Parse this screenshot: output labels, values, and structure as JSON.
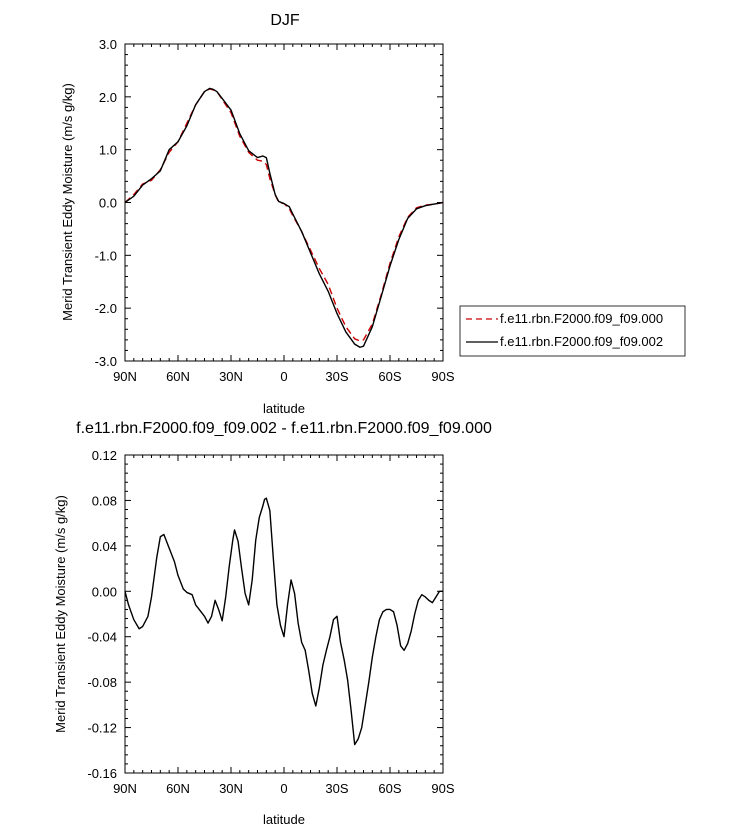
{
  "chart_data": [
    {
      "type": "line",
      "title": "DJF",
      "xlabel": "latitude",
      "ylabel": "Merid Transient Eddy Moisture (m/s g/kg)",
      "xlim": [
        -90,
        90
      ],
      "ylim": [
        -3.0,
        3.0
      ],
      "x_ticks": [
        -90,
        -60,
        -30,
        0,
        30,
        60,
        90
      ],
      "x_tick_labels": [
        "90N",
        "60N",
        "30N",
        "0",
        "30S",
        "60S",
        "90S"
      ],
      "y_ticks": [
        -3.0,
        -2.0,
        -1.0,
        0.0,
        1.0,
        2.0,
        3.0
      ],
      "y_tick_labels": [
        "-3.0",
        "-2.0",
        "-1.0",
        "0.0",
        "1.0",
        "2.0",
        "3.0"
      ],
      "grid": false,
      "legend_position": "right",
      "series": [
        {
          "name": "f.e11.rbn.F2000.f09_f09.000",
          "color": "#cc0000",
          "dash": "dashed",
          "x": [
            -90,
            -85,
            -80,
            -75,
            -70,
            -65,
            -60,
            -55,
            -50,
            -45,
            -42,
            -40,
            -38,
            -35,
            -30,
            -25,
            -20,
            -15,
            -12,
            -10,
            -8,
            -5,
            -3,
            0,
            3,
            5,
            10,
            15,
            20,
            25,
            30,
            35,
            40,
            43,
            45,
            50,
            55,
            60,
            65,
            70,
            75,
            80,
            85,
            90
          ],
          "y": [
            0.0,
            0.15,
            0.35,
            0.42,
            0.62,
            0.95,
            1.15,
            1.5,
            1.85,
            2.1,
            2.15,
            2.13,
            2.1,
            1.95,
            1.7,
            1.25,
            0.95,
            0.8,
            0.78,
            0.72,
            0.45,
            0.15,
            0.0,
            -0.02,
            -0.12,
            -0.25,
            -0.55,
            -0.9,
            -1.25,
            -1.55,
            -2.0,
            -2.35,
            -2.58,
            -2.62,
            -2.6,
            -2.3,
            -1.75,
            -1.15,
            -0.65,
            -0.28,
            -0.1,
            -0.05,
            -0.03,
            0.0
          ]
        },
        {
          "name": "f.e11.rbn.F2000.f09_f09.002",
          "color": "#000000",
          "dash": "solid",
          "x": [
            -90,
            -85,
            -80,
            -75,
            -70,
            -65,
            -60,
            -55,
            -50,
            -45,
            -42,
            -40,
            -38,
            -35,
            -30,
            -25,
            -20,
            -15,
            -12,
            -10,
            -8,
            -5,
            -3,
            0,
            3,
            5,
            10,
            15,
            20,
            25,
            30,
            35,
            40,
            43,
            45,
            50,
            55,
            60,
            65,
            70,
            75,
            80,
            85,
            90
          ],
          "y": [
            0.0,
            0.12,
            0.33,
            0.45,
            0.6,
            1.0,
            1.15,
            1.45,
            1.85,
            2.1,
            2.16,
            2.14,
            2.1,
            1.97,
            1.75,
            1.3,
            0.98,
            0.85,
            0.88,
            0.85,
            0.55,
            0.15,
            0.02,
            -0.02,
            -0.08,
            -0.22,
            -0.55,
            -0.95,
            -1.35,
            -1.68,
            -2.1,
            -2.45,
            -2.68,
            -2.74,
            -2.72,
            -2.35,
            -1.78,
            -1.2,
            -0.7,
            -0.3,
            -0.12,
            -0.06,
            -0.03,
            0.0
          ]
        }
      ]
    },
    {
      "type": "line",
      "title": "f.e11.rbn.F2000.f09_f09.002 - f.e11.rbn.F2000.f09_f09.000",
      "xlabel": "latitude",
      "ylabel": "Merid Transient Eddy Moisture (m/s g/kg)",
      "xlim": [
        -90,
        90
      ],
      "ylim": [
        -0.16,
        0.12
      ],
      "x_ticks": [
        -90,
        -60,
        -30,
        0,
        30,
        60,
        90
      ],
      "x_tick_labels": [
        "90N",
        "60N",
        "30N",
        "0",
        "30S",
        "60S",
        "90S"
      ],
      "y_ticks": [
        -0.16,
        -0.12,
        -0.08,
        -0.04,
        0.0,
        0.04,
        0.08,
        0.12
      ],
      "y_tick_labels": [
        "-0.16",
        "-0.12",
        "-0.08",
        "-0.04",
        "0.00",
        "0.04",
        "0.08",
        "0.12"
      ],
      "grid": false,
      "series": [
        {
          "color": "#000000",
          "x": [
            -90,
            -88,
            -85,
            -82,
            -80,
            -77,
            -75,
            -72,
            -70,
            -68,
            -65,
            -62,
            -60,
            -57,
            -55,
            -52,
            -50,
            -48,
            -45,
            -43,
            -41,
            -39,
            -37,
            -35,
            -33,
            -31,
            -29,
            -28,
            -26,
            -24,
            -22,
            -20,
            -18,
            -16,
            -14,
            -12,
            -11,
            -10,
            -8,
            -6,
            -4,
            -2,
            0,
            2,
            4,
            6,
            8,
            10,
            12,
            14,
            16,
            18,
            20,
            22,
            24,
            26,
            28,
            30,
            32,
            34,
            36,
            38,
            40,
            42,
            44,
            46,
            48,
            50,
            52,
            54,
            56,
            58,
            60,
            62,
            64,
            66,
            68,
            70,
            72,
            74,
            76,
            78,
            80,
            82,
            84,
            86,
            88,
            90
          ],
          "y": [
            0.0,
            -0.012,
            -0.025,
            -0.033,
            -0.031,
            -0.022,
            -0.005,
            0.03,
            0.048,
            0.05,
            0.038,
            0.026,
            0.014,
            0.002,
            -0.001,
            -0.003,
            -0.012,
            -0.016,
            -0.022,
            -0.028,
            -0.022,
            -0.008,
            -0.016,
            -0.026,
            -0.005,
            0.022,
            0.045,
            0.054,
            0.044,
            0.02,
            -0.002,
            -0.012,
            0.01,
            0.045,
            0.065,
            0.075,
            0.081,
            0.082,
            0.071,
            0.028,
            -0.012,
            -0.03,
            -0.04,
            -0.012,
            0.01,
            -0.002,
            -0.028,
            -0.045,
            -0.052,
            -0.07,
            -0.09,
            -0.101,
            -0.085,
            -0.065,
            -0.052,
            -0.04,
            -0.025,
            -0.022,
            -0.045,
            -0.06,
            -0.078,
            -0.105,
            -0.135,
            -0.13,
            -0.12,
            -0.1,
            -0.08,
            -0.058,
            -0.04,
            -0.025,
            -0.018,
            -0.016,
            -0.016,
            -0.018,
            -0.03,
            -0.048,
            -0.052,
            -0.046,
            -0.035,
            -0.02,
            -0.008,
            -0.003,
            -0.005,
            -0.008,
            -0.01,
            -0.005,
            0.0,
            0.0
          ]
        }
      ]
    }
  ]
}
